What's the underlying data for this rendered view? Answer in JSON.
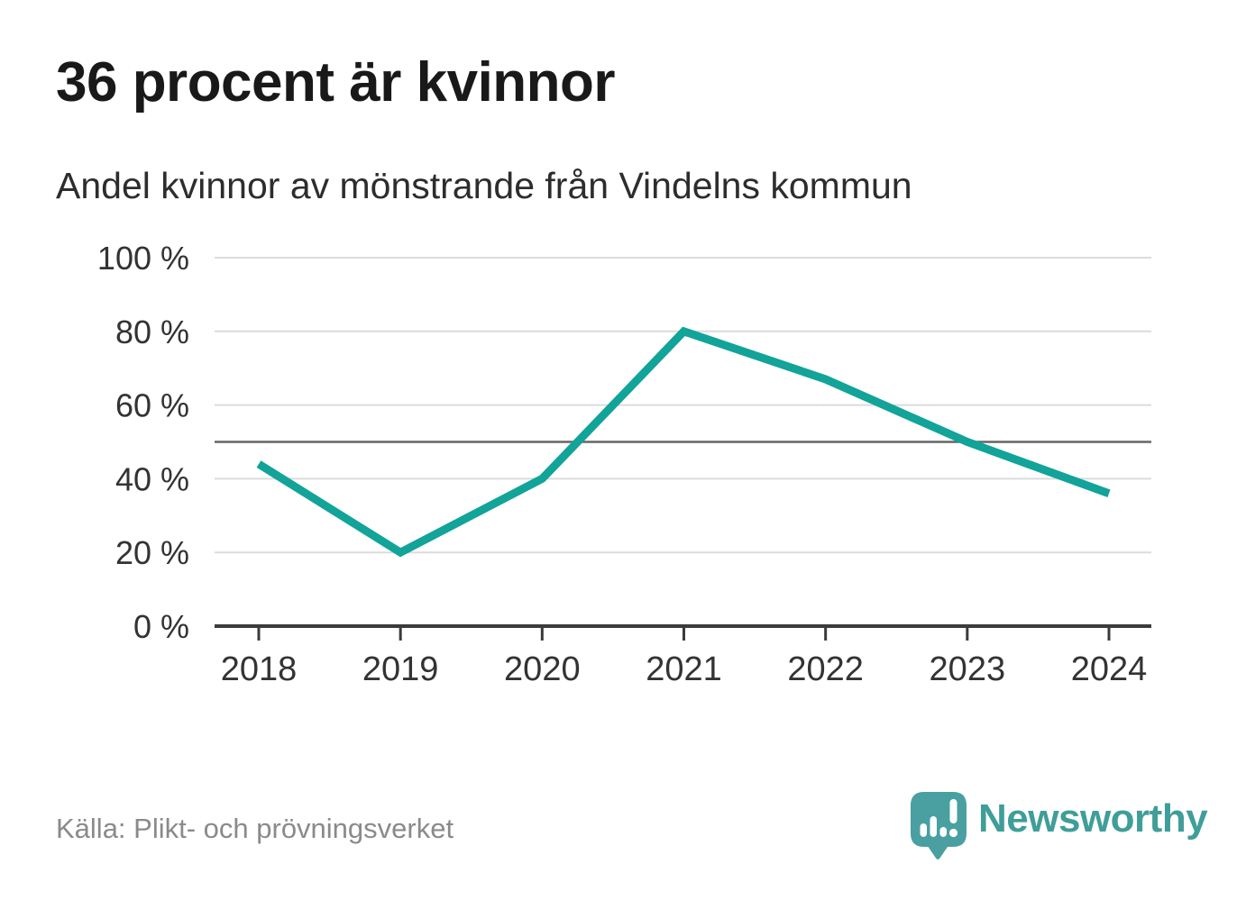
{
  "header": {
    "title": "36 procent är kvinnor",
    "subtitle": "Andel kvinnor av mönstrande från Vindelns kommun"
  },
  "footer": {
    "source": "Källa: Plikt- och prövningsverket",
    "brand": "Newsworthy"
  },
  "colors": {
    "line": "#12a399",
    "grid": "#dcdcdc",
    "reference_line": "#666666",
    "axis": "#3b3b3b",
    "tick_text": "#333333",
    "muted_text": "#8a8a8a",
    "brand_teal": "#4aa0a0",
    "brand_text": "#3f9e99"
  },
  "chart_data": {
    "type": "line",
    "x": [
      2018,
      2019,
      2020,
      2021,
      2022,
      2023,
      2024
    ],
    "series": [
      {
        "name": "Andel kvinnor av mönstrande",
        "values": [
          44,
          20,
          40,
          80,
          67,
          50,
          36
        ]
      }
    ],
    "unit": "%",
    "title": "36 procent är kvinnor",
    "subtitle": "Andel kvinnor av mönstrande från Vindelns kommun",
    "xlabel": "",
    "ylabel": "",
    "ylim": [
      0,
      100
    ],
    "yticks": [
      0,
      20,
      40,
      60,
      80,
      100
    ],
    "ytick_format": "{v} %",
    "reference_line": 50,
    "grid": "horizontal",
    "legend": "none"
  }
}
